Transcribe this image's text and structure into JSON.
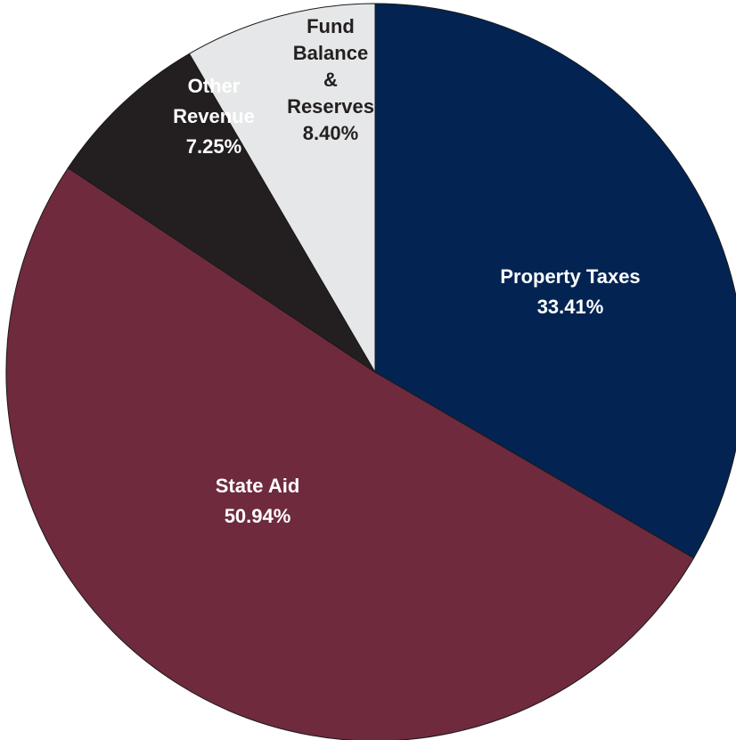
{
  "chart_data": {
    "type": "pie",
    "slices": [
      {
        "id": "property-taxes",
        "label_lines": [
          "Property Taxes"
        ],
        "value_label": "33.41%",
        "value": 33.41,
        "color": "#032452",
        "label_color": "#ffffff"
      },
      {
        "id": "state-aid",
        "label_lines": [
          "State Aid"
        ],
        "value_label": "50.94%",
        "value": 50.94,
        "color": "#6f2a3d",
        "label_color": "#ffffff"
      },
      {
        "id": "other-revenue",
        "label_lines": [
          "Other",
          "Revenue"
        ],
        "value_label": "7.25%",
        "value": 7.25,
        "color": "#231f20",
        "label_color": "#ffffff"
      },
      {
        "id": "fund-balance-reserves",
        "label_lines": [
          "Fund",
          "Balance",
          "&",
          "Reserves"
        ],
        "value_label": "8.40%",
        "value": 8.4,
        "color": "#e6e7e8",
        "label_color": "#231f20"
      }
    ],
    "start_angle": "12 o'clock",
    "direction": "clockwise"
  }
}
